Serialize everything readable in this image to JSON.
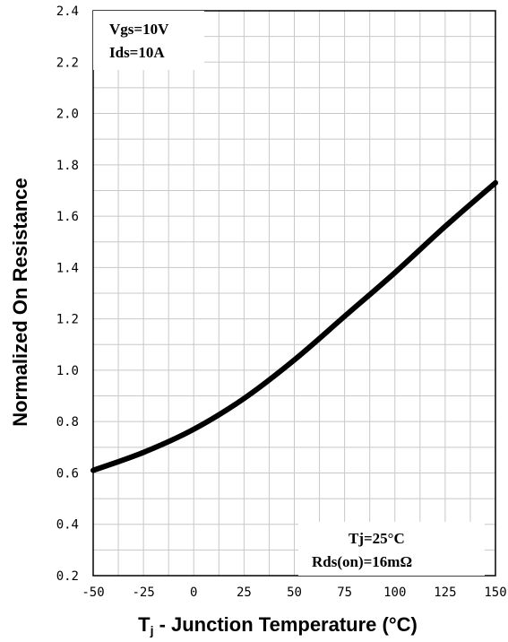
{
  "chart_data": {
    "type": "line",
    "title": "",
    "xlabel_main": "T",
    "xlabel_sub": "j",
    "xlabel_rest": " - Junction Temperature (°C)",
    "ylabel": "Normalized On Resistance",
    "xlim": [
      -50,
      150
    ],
    "ylim": [
      0.2,
      2.4
    ],
    "x_ticks": [
      "-50",
      "-25",
      "0",
      "25",
      "50",
      "75",
      "100",
      "125",
      "150"
    ],
    "y_ticks": [
      {
        "value": 0.2,
        "label": "0.2"
      },
      {
        "value": 0.4,
        "label": "0.4"
      },
      {
        "value": 0.6,
        "label": "0.6"
      },
      {
        "value": 0.8,
        "label": "0.8"
      },
      {
        "value": 1.0,
        "label": "1.0"
      },
      {
        "value": 1.2,
        "label": "1.2"
      },
      {
        "value": 1.4,
        "label": "1.4"
      },
      {
        "value": 1.6,
        "label": "1.6"
      },
      {
        "value": 1.8,
        "label": "1.8"
      },
      {
        "value": 2.0,
        "label": "2.0"
      },
      {
        "value": 2.2,
        "label": "2.2"
      },
      {
        "value": 2.4,
        "label": "2.4"
      }
    ],
    "grid": true,
    "annotations": {
      "top_left": [
        "Vgs=10V",
        "Ids=10A"
      ],
      "bottom_right": [
        "Tj=25°C",
        "Rds(on)=16mΩ"
      ]
    },
    "line_color": "#000000",
    "series": [
      {
        "x": [
          -50,
          -25,
          0,
          25,
          50,
          75,
          100,
          125,
          150
        ],
        "y": [
          0.61,
          0.68,
          0.77,
          0.89,
          1.04,
          1.21,
          1.38,
          1.56,
          1.73
        ]
      }
    ]
  }
}
